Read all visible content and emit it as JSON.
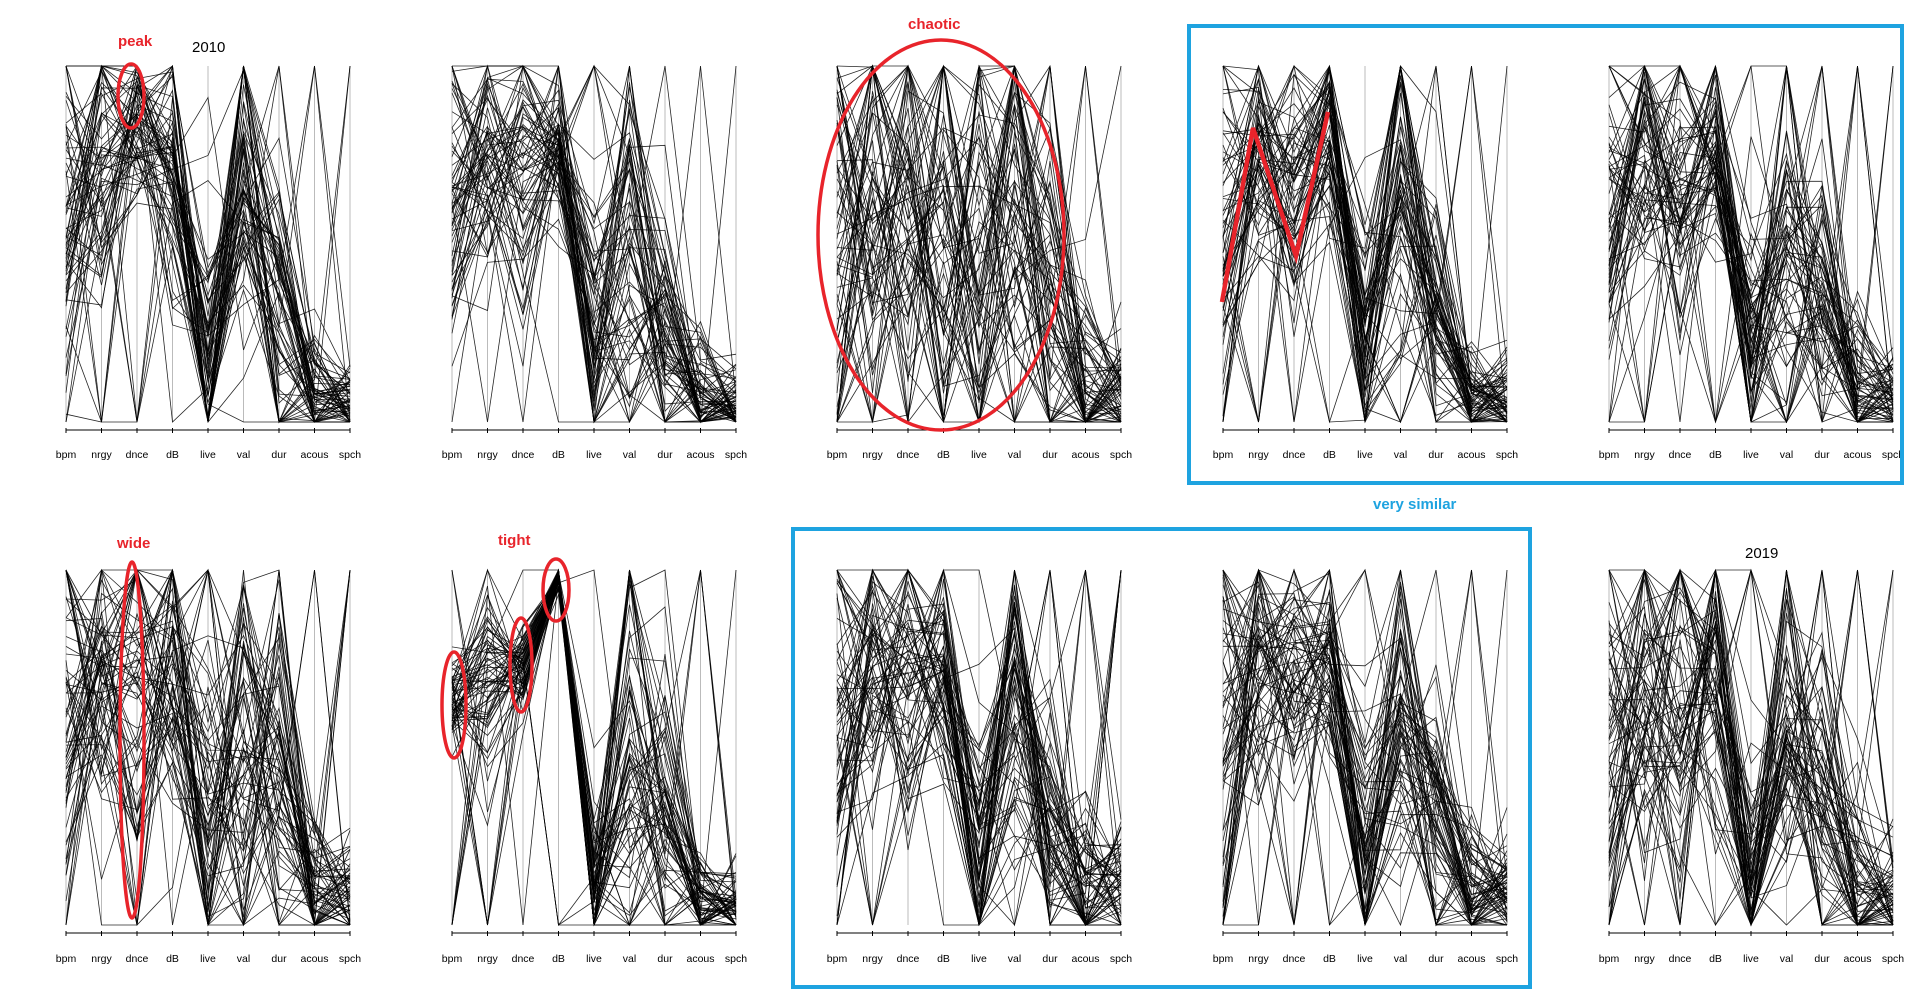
{
  "colors": {
    "lines": "#000000",
    "axis": "#bbbbbb",
    "highlight_red": "#e8242b",
    "highlight_blue": "#1ea3e0",
    "background": "#ffffff"
  },
  "year_labels": {
    "first": "2010",
    "last": "2019"
  },
  "annotations": {
    "peak": "peak",
    "chaotic": "chaotic",
    "wide": "wide",
    "tight": "tight",
    "very_similar": "very similar"
  },
  "chart_data": {
    "type": "parallel-coordinates",
    "axes": [
      "bpm",
      "nrgy",
      "dnce",
      "dB",
      "live",
      "val",
      "dur",
      "acous",
      "spch"
    ],
    "panels": [
      {
        "label": "2010",
        "grid": false
      },
      {
        "label": "",
        "grid": false
      },
      {
        "label": "",
        "grid": false
      },
      {
        "label": "",
        "grid": false
      },
      {
        "label": "",
        "grid": false
      },
      {
        "label": "",
        "grid": false
      },
      {
        "label": "",
        "grid": false
      },
      {
        "label": "",
        "grid": false
      },
      {
        "label": "",
        "grid": false
      },
      {
        "label": "2019",
        "grid": false
      }
    ]
  }
}
